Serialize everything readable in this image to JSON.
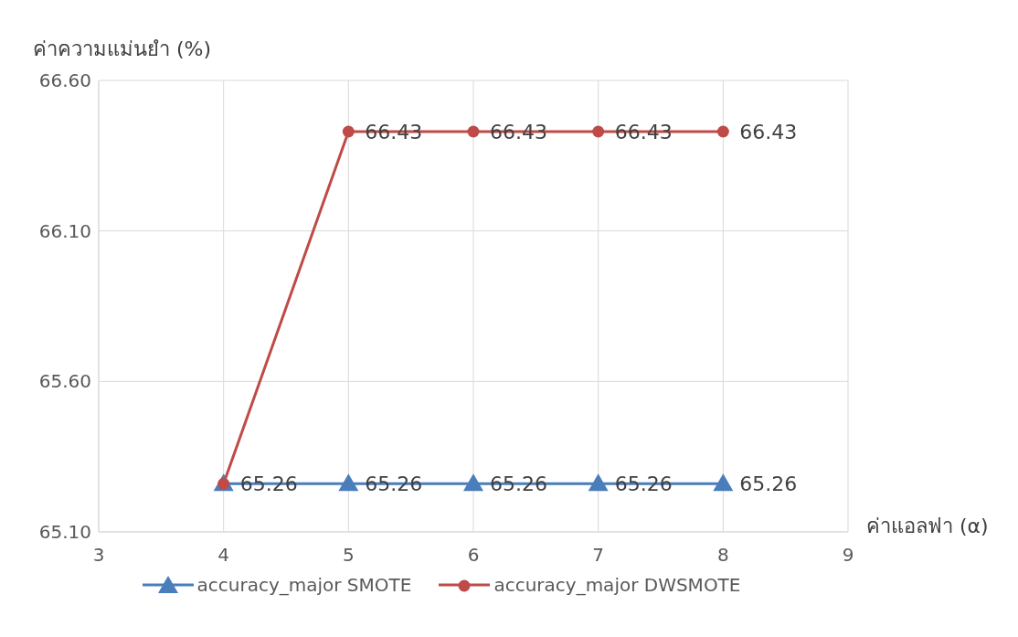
{
  "chart_data": {
    "type": "line",
    "ylabel": "ค่าความแม่นยำ (%)",
    "xlabel": "ค่าแอลฟา (α)",
    "x": [
      4,
      5,
      6,
      7,
      8
    ],
    "xlim": [
      3,
      9
    ],
    "xticks": [
      3,
      4,
      5,
      6,
      7,
      8,
      9
    ],
    "ylim": [
      65.1,
      66.6
    ],
    "yticks": [
      {
        "value": 65.1,
        "label": "65.10"
      },
      {
        "value": 65.6,
        "label": "65.60"
      },
      {
        "value": 66.1,
        "label": "66.10"
      },
      {
        "value": 66.6,
        "label": "66.60"
      }
    ],
    "grid": true,
    "legend": "bottom",
    "series": [
      {
        "name": "accuracy_major SMOTE",
        "color": "#4a7ebb",
        "marker": "triangle",
        "values": [
          65.26,
          65.26,
          65.26,
          65.26,
          65.26
        ],
        "value_labels": [
          "65.26",
          "65.26",
          "65.26",
          "65.26",
          "65.26"
        ]
      },
      {
        "name": "accuracy_major DWSMOTE",
        "color": "#be4b48",
        "marker": "circle",
        "values": [
          65.26,
          66.43,
          66.43,
          66.43,
          66.43
        ],
        "value_labels": [
          null,
          "66.43",
          "66.43",
          "66.43",
          "66.43"
        ]
      }
    ]
  }
}
